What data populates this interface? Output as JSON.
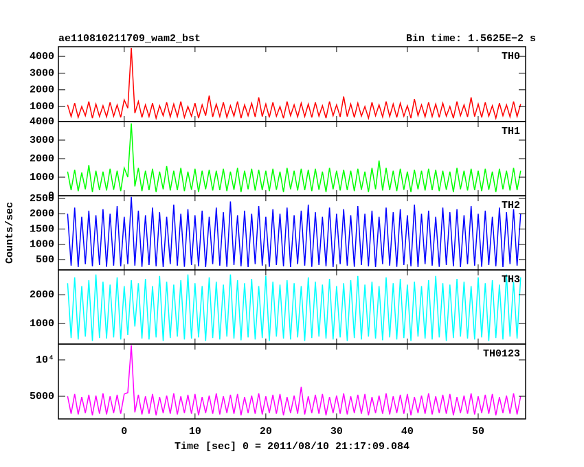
{
  "chart_data": {
    "type": "line",
    "title": "ae110810211709_wam2_bst",
    "subtitle": "Bin time: 1.5625E−2 s",
    "ylabel": "Counts/sec",
    "xlabel": "Time [sec] 0 = 2011/08/10 21:17:09.084",
    "xlim": [
      -9.3,
      56.7
    ],
    "xticks": [
      0,
      10,
      20,
      30,
      40,
      50
    ],
    "x": [
      -8,
      -7.5,
      -7,
      -6.5,
      -6,
      -5.5,
      -5,
      -4.5,
      -4,
      -3.5,
      -3,
      -2.5,
      -2,
      -1.5,
      -1,
      -0.5,
      0,
      0.5,
      1,
      1.5,
      2,
      2.5,
      3,
      3.5,
      4,
      4.5,
      5,
      5.5,
      6,
      6.5,
      7,
      7.5,
      8,
      8.5,
      9,
      9.5,
      10,
      10.5,
      11,
      11.5,
      12,
      12.5,
      13,
      13.5,
      14,
      14.5,
      15,
      15.5,
      16,
      16.5,
      17,
      17.5,
      18,
      18.5,
      19,
      19.5,
      20,
      20.5,
      21,
      21.5,
      22,
      22.5,
      23,
      23.5,
      24,
      24.5,
      25,
      25.5,
      26,
      26.5,
      27,
      27.5,
      28,
      28.5,
      29,
      29.5,
      30,
      30.5,
      31,
      31.5,
      32,
      32.5,
      33,
      33.5,
      34,
      34.5,
      35,
      35.5,
      36,
      36.5,
      37,
      37.5,
      38,
      38.5,
      39,
      39.5,
      40,
      40.5,
      41,
      41.5,
      42,
      42.5,
      43,
      43.5,
      44,
      44.5,
      45,
      45.5,
      46,
      46.5,
      47,
      47.5,
      48,
      48.5,
      49,
      49.5,
      50,
      50.5,
      51,
      51.5,
      52,
      52.5,
      53,
      53.5,
      54,
      54.5,
      55,
      55.5,
      56
    ],
    "series": [
      {
        "name": "TH0",
        "color": "#ff0000",
        "ylim": [
          100,
          4580
        ],
        "yticks": [
          1000,
          2000,
          3000,
          4000
        ],
        "values": [
          1100,
          400,
          1200,
          350,
          1000,
          450,
          1300,
          300,
          1150,
          400,
          1050,
          380,
          1250,
          420,
          1100,
          350,
          1400,
          900,
          4500,
          600,
          1300,
          350,
          1100,
          400,
          1200,
          300,
          1050,
          450,
          1250,
          380,
          1150,
          400,
          1300,
          350,
          1000,
          420,
          1200,
          300,
          1100,
          450,
          1650,
          380,
          1150,
          400,
          1250,
          350,
          1050,
          420,
          1300,
          300,
          1100,
          450,
          1200,
          380,
          1550,
          400,
          1150,
          350,
          1250,
          420,
          1000,
          300,
          1300,
          450,
          1100,
          380,
          1200,
          400,
          1150,
          350,
          1250,
          420,
          1050,
          300,
          1300,
          450,
          1100,
          380,
          1600,
          400,
          1150,
          350,
          1200,
          420,
          1000,
          300,
          1250,
          450,
          1100,
          380,
          1300,
          400,
          1150,
          350,
          1200,
          420,
          1050,
          300,
          1450,
          450,
          1100,
          380,
          1250,
          400,
          1150,
          350,
          1200,
          420,
          1000,
          300,
          1300,
          450,
          1100,
          380,
          1550,
          400,
          1150,
          350,
          1250,
          420,
          1050,
          300,
          1200,
          450,
          1100,
          380,
          1300,
          400,
          1150
        ]
      },
      {
        "name": "TH1",
        "color": "#00ff00",
        "ylim": [
          0,
          4000
        ],
        "yticks": [
          0,
          1000,
          2000,
          3000,
          4000
        ],
        "values": [
          1300,
          300,
          1400,
          250,
          1250,
          350,
          1650,
          200,
          1350,
          300,
          1300,
          280,
          1450,
          320,
          1350,
          250,
          1500,
          1000,
          3900,
          500,
          1500,
          250,
          1350,
          300,
          1450,
          200,
          1300,
          350,
          1600,
          280,
          1350,
          300,
          1500,
          250,
          1300,
          320,
          1450,
          200,
          1350,
          350,
          1400,
          280,
          1350,
          300,
          1450,
          250,
          1300,
          320,
          1500,
          200,
          1350,
          350,
          1450,
          280,
          1400,
          300,
          1350,
          250,
          1450,
          320,
          1300,
          200,
          1500,
          350,
          1350,
          280,
          1450,
          300,
          1400,
          250,
          1450,
          320,
          1300,
          200,
          1500,
          350,
          1350,
          280,
          1400,
          300,
          1350,
          250,
          1450,
          320,
          1300,
          200,
          1500,
          350,
          1900,
          280,
          1500,
          300,
          1350,
          250,
          1450,
          320,
          1300,
          200,
          1400,
          350,
          1350,
          280,
          1450,
          300,
          1400,
          250,
          1350,
          320,
          1300,
          200,
          1500,
          350,
          1350,
          280,
          1450,
          300,
          1350,
          250,
          1450,
          320,
          1300,
          200,
          1450,
          350,
          1350,
          280,
          1500,
          300,
          1350
        ]
      },
      {
        "name": "TH2",
        "color": "#0000ff",
        "ylim": [
          160,
          2590
        ],
        "yticks": [
          500,
          1000,
          1500,
          2000,
          2500
        ],
        "values": [
          2000,
          300,
          2200,
          250,
          1900,
          350,
          2100,
          280,
          1950,
          320,
          2150,
          260,
          2000,
          300,
          2250,
          280,
          1900,
          350,
          2550,
          300,
          2100,
          260,
          1950,
          320,
          2200,
          280,
          2050,
          250,
          1900,
          350,
          2300,
          300,
          2000,
          260,
          2150,
          320,
          1950,
          280,
          2100,
          250,
          1900,
          350,
          2200,
          300,
          2050,
          260,
          2400,
          320,
          1950,
          280,
          2100,
          250,
          2000,
          350,
          2250,
          300,
          1900,
          260,
          2150,
          320,
          2000,
          280,
          2200,
          250,
          1950,
          350,
          2100,
          300,
          2300,
          260,
          2050,
          320,
          1900,
          280,
          2200,
          250,
          2000,
          350,
          2150,
          300,
          1950,
          260,
          2250,
          320,
          2000,
          280,
          2100,
          250,
          1900,
          350,
          2200,
          300,
          2050,
          260,
          2150,
          320,
          1950,
          280,
          2300,
          250,
          2000,
          350,
          2100,
          300,
          1900,
          260,
          2200,
          320,
          2050,
          280,
          2150,
          250,
          1950,
          350,
          2250,
          300,
          2000,
          260,
          2100,
          320,
          1900,
          280,
          2200,
          250,
          2050,
          350,
          2150,
          300,
          2000
        ]
      },
      {
        "name": "TH3",
        "color": "#00ffff",
        "ylim": [
          290,
          2860
        ],
        "yticks": [
          1000,
          2000
        ],
        "values": [
          2400,
          500,
          2600,
          450,
          2300,
          550,
          2500,
          400,
          2700,
          500,
          2450,
          480,
          2350,
          520,
          2600,
          450,
          2300,
          600,
          2500,
          900,
          2400,
          480,
          2550,
          450,
          2300,
          520,
          2650,
          400,
          2450,
          500,
          2350,
          550,
          2500,
          450,
          2700,
          480,
          2400,
          520,
          2300,
          400,
          2600,
          500,
          2450,
          450,
          2350,
          550,
          2700,
          480,
          2500,
          420,
          2400,
          520,
          2550,
          450,
          2300,
          500,
          2650,
          400,
          2450,
          550,
          2350,
          480,
          2500,
          450,
          2400,
          520,
          2300,
          400,
          2600,
          500,
          2450,
          550,
          2350,
          480,
          2550,
          450,
          2300,
          520,
          2400,
          400,
          2500,
          500,
          2650,
          450,
          2350,
          550,
          2450,
          480,
          2300,
          420,
          2600,
          520,
          2400,
          450,
          2550,
          500,
          2350,
          400,
          2450,
          550,
          2300,
          480,
          2500,
          450,
          2650,
          520,
          2400,
          400,
          2350,
          500,
          2550,
          550,
          2450,
          480,
          2300,
          450,
          2600,
          520,
          2400,
          400,
          2500,
          500,
          2350,
          450,
          2700,
          550,
          2450,
          480,
          2600
        ]
      },
      {
        "name": "TH0123",
        "color": "#ff00ff",
        "ylim": [
          1890,
          12170
        ],
        "yticks": [
          5000,
          {
            "value": 10000,
            "label": "10⁴"
          }
        ],
        "values": [
          5000,
          2600,
          5300,
          2500,
          4900,
          2700,
          5200,
          2400,
          5100,
          2600,
          5400,
          2500,
          5000,
          2700,
          5200,
          2600,
          5300,
          5500,
          12000,
          2800,
          5200,
          2500,
          5000,
          2600,
          5300,
          2400,
          4900,
          2700,
          5100,
          2600,
          5400,
          2500,
          5000,
          2700,
          5200,
          2600,
          5300,
          2400,
          4900,
          2700,
          5100,
          2600,
          5400,
          2500,
          5000,
          2700,
          5200,
          2600,
          5300,
          2400,
          4900,
          2700,
          5100,
          2600,
          5400,
          2500,
          5000,
          2700,
          5200,
          2600,
          5300,
          2400,
          4900,
          2700,
          5100,
          2600,
          6300,
          2500,
          5000,
          2700,
          5200,
          2600,
          5300,
          2400,
          4900,
          2700,
          5100,
          2600,
          5400,
          2500,
          5000,
          2700,
          5200,
          2600,
          5300,
          2400,
          4900,
          2700,
          5100,
          2600,
          5400,
          2500,
          5000,
          2700,
          5200,
          2600,
          5300,
          2400,
          4900,
          2700,
          5100,
          2600,
          5400,
          2500,
          5000,
          2700,
          5200,
          2600,
          5300,
          2400,
          4900,
          2700,
          5100,
          2600,
          5400,
          2500,
          5000,
          2700,
          5200,
          2600,
          5300,
          2400,
          4900,
          2700,
          5100,
          2600,
          5400,
          2500,
          5000
        ]
      }
    ]
  }
}
